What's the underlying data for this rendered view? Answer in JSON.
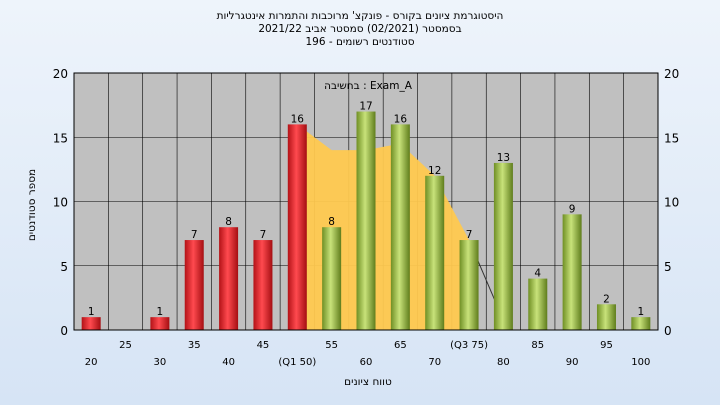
{
  "chart_data": {
    "type": "bar",
    "title": "היסטוגרמת ציונים בקורס - פונקצ' מרוכבות והתמרות אינטגרליות",
    "subtitle": "בסמסטר  (02/2021)  סמסטר אביב 2021/22",
    "subtitle2": "סטודנטים רשומים - 196",
    "annotation": "בחשיבה : Exam_A",
    "xlabel": "טווח ציונים",
    "ylabel": "מספר סטודנטים",
    "ylim": [
      0,
      20
    ],
    "yticks": [
      0,
      5,
      10,
      15,
      20
    ],
    "xtick_labels": [
      {
        "x": 20,
        "label": "20",
        "row": "low"
      },
      {
        "x": 25,
        "label": "25",
        "row": "high"
      },
      {
        "x": 30,
        "label": "30",
        "row": "low"
      },
      {
        "x": 35,
        "label": "35",
        "row": "high"
      },
      {
        "x": 40,
        "label": "40",
        "row": "low"
      },
      {
        "x": 45,
        "label": "45",
        "row": "high"
      },
      {
        "x": 50,
        "label": "(Q1 50)",
        "row": "low"
      },
      {
        "x": 55,
        "label": "55",
        "row": "high"
      },
      {
        "x": 60,
        "label": "60",
        "row": "low"
      },
      {
        "x": 65,
        "label": "65",
        "row": "high"
      },
      {
        "x": 70,
        "label": "70",
        "row": "low"
      },
      {
        "x": 75,
        "label": "(Q3 75)",
        "row": "high"
      },
      {
        "x": 80,
        "label": "80",
        "row": "low"
      },
      {
        "x": 85,
        "label": "85",
        "row": "high"
      },
      {
        "x": 90,
        "label": "90",
        "row": "low"
      },
      {
        "x": 95,
        "label": "95",
        "row": "high"
      },
      {
        "x": 100,
        "label": "100",
        "row": "low"
      }
    ],
    "bars": [
      {
        "x": 20,
        "value": 1,
        "status": "fail"
      },
      {
        "x": 30,
        "value": 1,
        "status": "fail"
      },
      {
        "x": 35,
        "value": 7,
        "status": "fail"
      },
      {
        "x": 40,
        "value": 8,
        "status": "fail"
      },
      {
        "x": 45,
        "value": 7,
        "status": "fail"
      },
      {
        "x": 50,
        "value": 16,
        "status": "fail"
      },
      {
        "x": 55,
        "value": 8,
        "status": "pass"
      },
      {
        "x": 60,
        "value": 17,
        "status": "pass"
      },
      {
        "x": 65,
        "value": 16,
        "status": "pass"
      },
      {
        "x": 70,
        "value": 12,
        "status": "pass"
      },
      {
        "x": 75,
        "value": 7,
        "status": "pass"
      },
      {
        "x": 80,
        "value": 13,
        "status": "pass"
      },
      {
        "x": 85,
        "value": 4,
        "status": "pass"
      },
      {
        "x": 90,
        "value": 9,
        "status": "pass"
      },
      {
        "x": 95,
        "value": 2,
        "status": "pass"
      },
      {
        "x": 100,
        "value": 1,
        "status": "pass"
      }
    ],
    "distribution_area": [
      {
        "x": 50,
        "y": 16
      },
      {
        "x": 55,
        "y": 14
      },
      {
        "x": 60,
        "y": 14
      },
      {
        "x": 65,
        "y": 14.5
      },
      {
        "x": 70,
        "y": 12
      },
      {
        "x": 75,
        "y": 7
      }
    ],
    "colors": {
      "plot_bg": "#c0c0c0",
      "fail": "#e8262b",
      "pass": "#9bc13c",
      "area": "#ffc94f",
      "grid": "#000000"
    },
    "grid": true
  }
}
